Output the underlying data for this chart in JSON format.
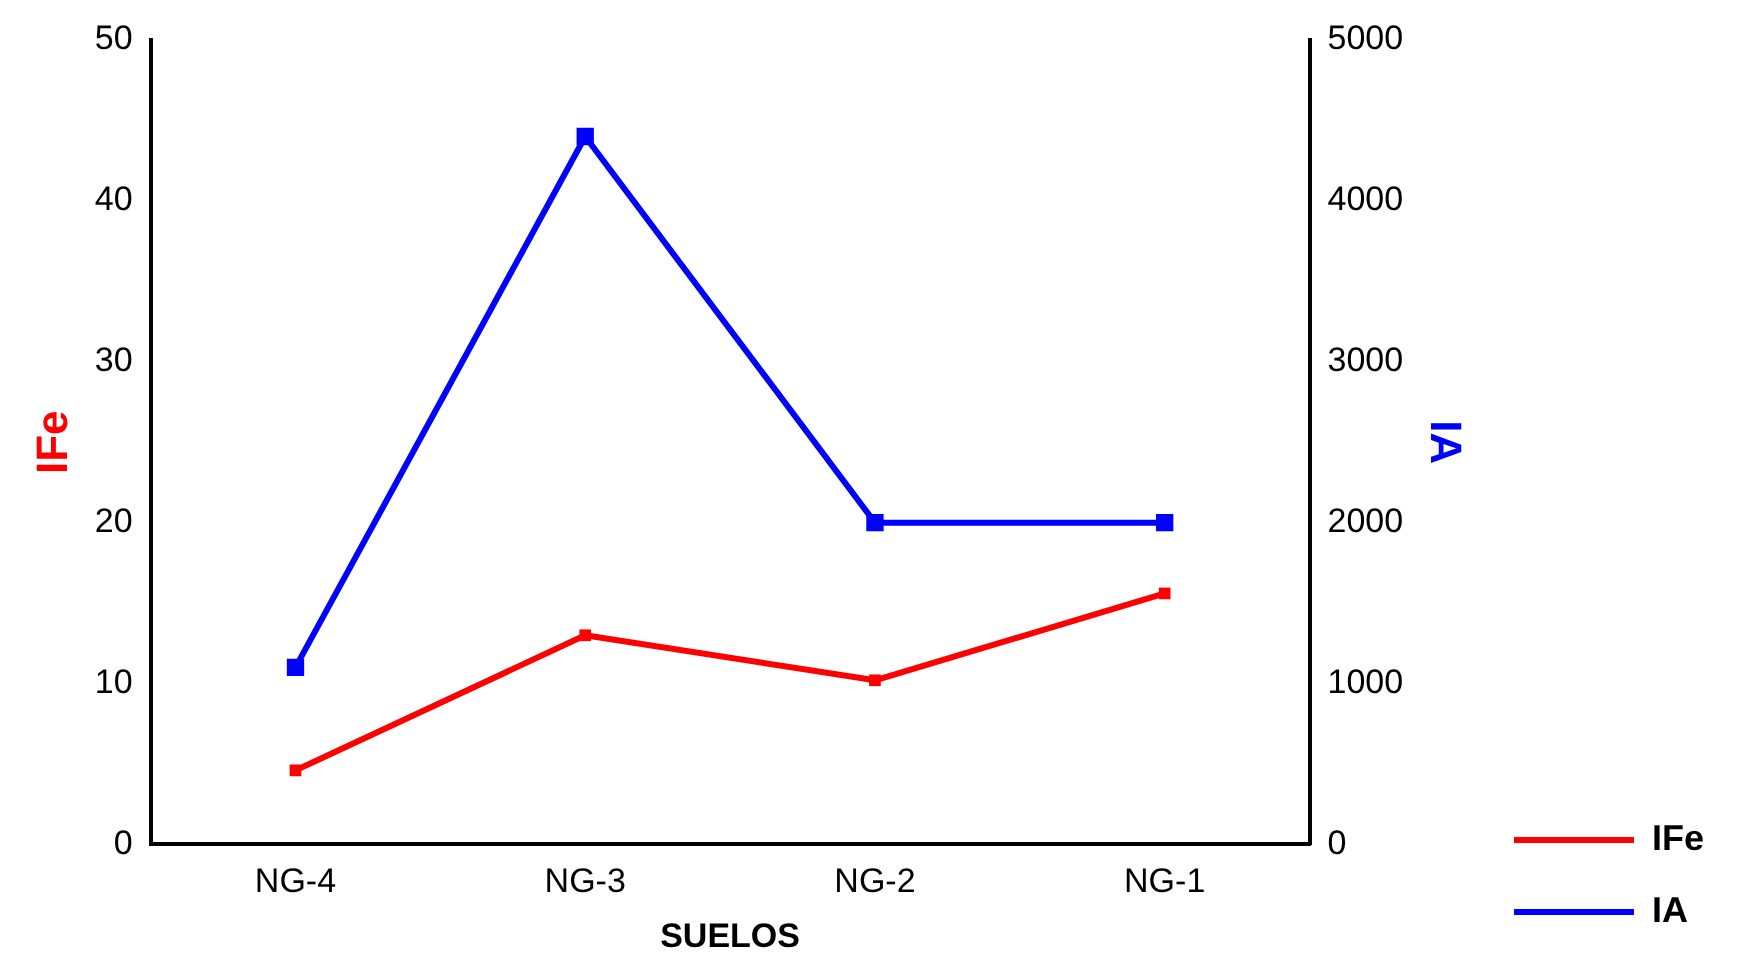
{
  "chart_data": {
    "type": "line",
    "xlabel": "SUELOS",
    "ylabel": "IFe",
    "y2label": "IA",
    "categories": [
      "NG-4",
      "NG-3",
      "NG-2",
      "NG-1"
    ],
    "series": [
      {
        "name": "IFe",
        "color": "#ff0000",
        "values": [
          4.6,
          13.0,
          10.2,
          15.6
        ]
      },
      {
        "name": "IA",
        "color": "#0000ff",
        "axis": "y2",
        "values": [
          1100,
          4400,
          2000,
          2000
        ]
      }
    ],
    "ylim": [
      0,
      50
    ],
    "yticks": [
      0,
      10,
      20,
      30,
      40,
      50
    ],
    "y2lim": [
      0,
      5000
    ],
    "y2ticks": [
      0,
      1000,
      2000,
      3000,
      4000,
      5000
    ],
    "grid": false,
    "legend": "bottom right",
    "marker": "square",
    "line_style": "solid"
  }
}
